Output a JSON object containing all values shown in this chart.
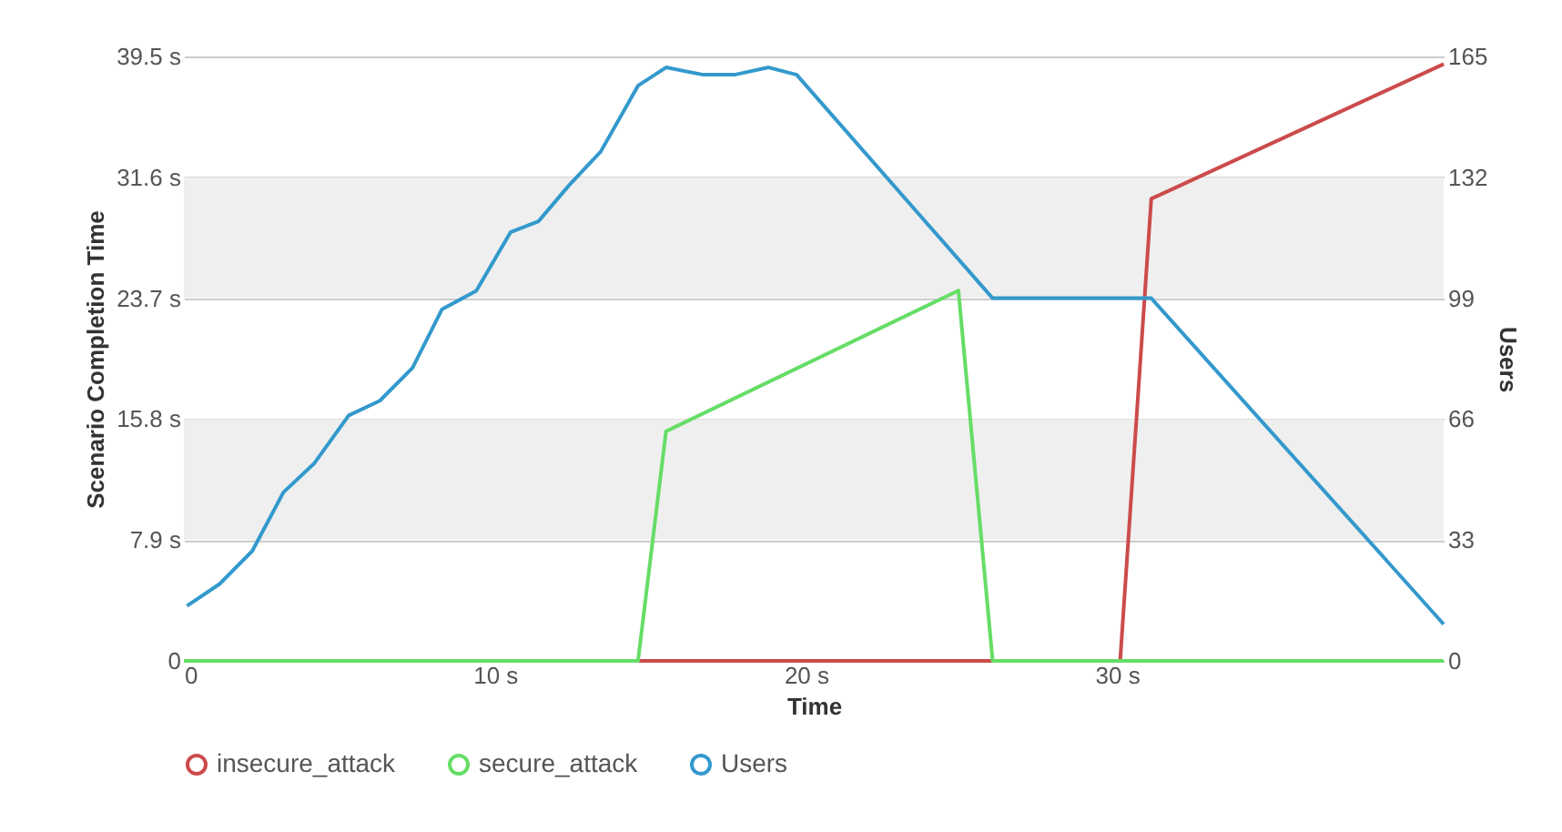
{
  "chart_data": {
    "type": "line",
    "xlabel": "Time",
    "ylabel": "Scenario Completion Time",
    "y2label": "Users",
    "xlim": [
      0,
      40.5
    ],
    "xticks": [
      0,
      {
        "value": 10,
        "label": "10 s"
      },
      {
        "value": 20,
        "label": "20 s"
      },
      {
        "value": 30,
        "label": "30 s"
      }
    ],
    "ylim": [
      0,
      39.5
    ],
    "yticks": [
      0,
      {
        "value": 7.9,
        "label": "7.9 s"
      },
      {
        "value": 15.8,
        "label": "15.8 s"
      },
      {
        "value": 23.7,
        "label": "23.7 s"
      },
      {
        "value": 31.6,
        "label": "31.6 s"
      },
      {
        "value": 39.5,
        "label": "39.5 s"
      }
    ],
    "y2lim": [
      0,
      165
    ],
    "y2ticks": [
      0,
      33,
      66,
      99,
      132,
      165
    ],
    "grid": "y",
    "legend": "bottom",
    "bands": [
      {
        "axis": "y",
        "from": 7.9,
        "to": 15.8,
        "color": "#efefef"
      },
      {
        "axis": "y",
        "from": 23.7,
        "to": 31.6,
        "color": "#efefef"
      }
    ],
    "series": [
      {
        "name": "insecure_attack",
        "color": "#cc4b4b",
        "x": [
          0,
          30.1,
          31.1,
          40.5
        ],
        "values": [
          0,
          0,
          30.2,
          39.0
        ]
      },
      {
        "name": "secure_attack",
        "color": "#66dd66",
        "x": [
          0,
          14.6,
          15.5,
          24.9,
          26.0,
          40.5
        ],
        "values": [
          0,
          0,
          15.0,
          24.2,
          0,
          0
        ]
      },
      {
        "name": "Users",
        "color": "#3399cc",
        "axis": "y2",
        "x": [
          0.1,
          1.15,
          2.2,
          3.2,
          4.2,
          5.3,
          6.3,
          7.35,
          8.3,
          9.4,
          10.5,
          11.4,
          12.4,
          13.4,
          14.6,
          15.5,
          16.7,
          17.7,
          18.8,
          19.7,
          26.0,
          31.1,
          40.5
        ],
        "values": [
          15,
          21,
          30,
          46,
          54,
          67,
          71,
          80,
          96,
          101,
          117,
          120,
          130,
          139,
          157,
          162,
          160,
          160,
          162,
          160,
          99,
          99,
          10
        ]
      }
    ]
  }
}
